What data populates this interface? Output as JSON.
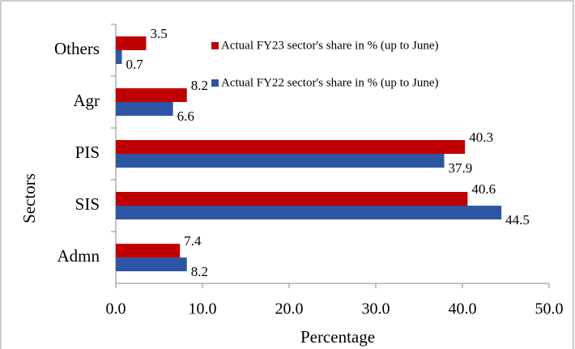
{
  "chart_data": {
    "type": "bar",
    "orientation": "horizontal",
    "x_label": "Percentage",
    "y_label": "Sectors",
    "categories": [
      "Others",
      "Agr",
      "PIS",
      "SIS",
      "Admn"
    ],
    "series": [
      {
        "name": "Actual FY23 sector's share in % (up to June)",
        "color": "#c00000",
        "values": [
          3.5,
          8.2,
          40.3,
          40.6,
          7.4
        ]
      },
      {
        "name": "Actual FY22 sector's share in % (up to June)",
        "color": "#2e55a4",
        "values": [
          0.7,
          6.6,
          37.9,
          44.5,
          8.2
        ]
      }
    ],
    "xlim": [
      0,
      50
    ],
    "xticks": [
      {
        "value": 0,
        "label": "0.0"
      },
      {
        "value": 10,
        "label": "10.0"
      },
      {
        "value": 20,
        "label": "20.0"
      },
      {
        "value": 30,
        "label": "30.0"
      },
      {
        "value": 40,
        "label": "40.0"
      },
      {
        "value": 50,
        "label": "50.0"
      }
    ],
    "grid": false,
    "legend": "top-right"
  }
}
